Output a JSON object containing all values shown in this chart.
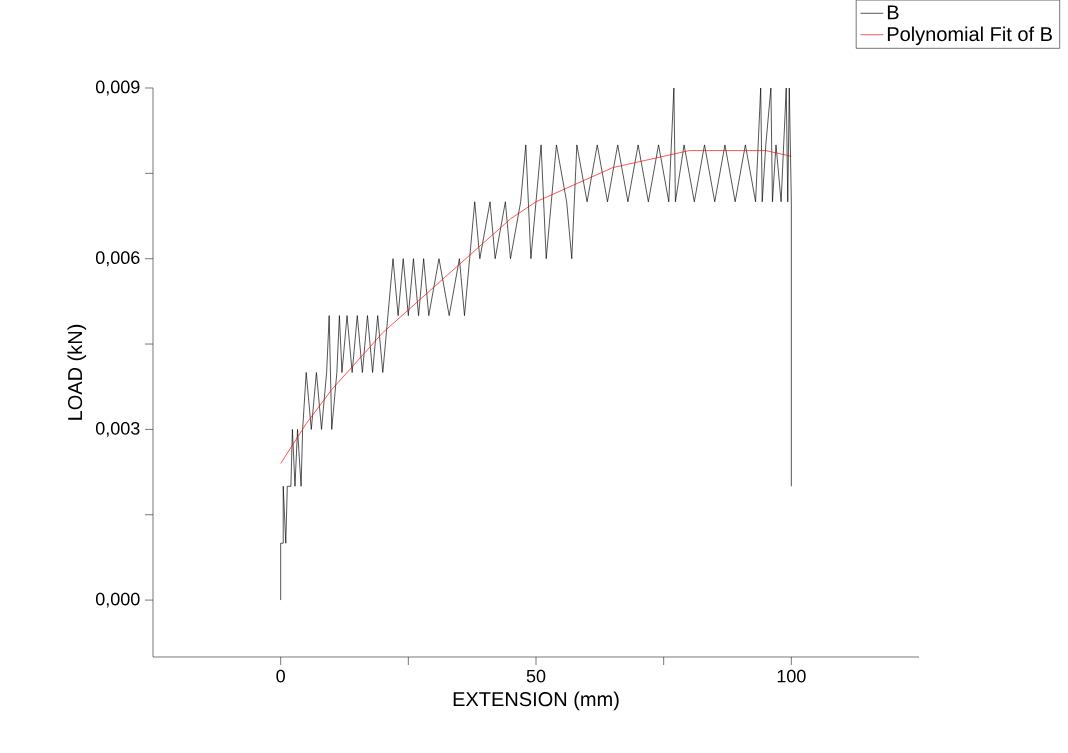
{
  "chart_data": {
    "type": "line",
    "xlabel": "EXTENSION (mm)",
    "ylabel": "LOAD (kN)",
    "xlim": [
      -25,
      125
    ],
    "ylim": [
      -0.001,
      0.009
    ],
    "xticks": [
      0,
      {
        "value": 25,
        "label": null
      },
      50,
      {
        "value": 75,
        "label": null
      },
      100
    ],
    "yticks": [
      {
        "value": 0,
        "label": "0,000"
      },
      {
        "value": 0.0015,
        "label": null
      },
      {
        "value": 0.003,
        "label": "0,003"
      },
      {
        "value": 0.0045,
        "label": null
      },
      {
        "value": 0.006,
        "label": "0,006"
      },
      {
        "value": 0.0075,
        "label": null
      },
      {
        "value": 0.009,
        "label": "0,009"
      }
    ],
    "grid": false,
    "legend": "top right",
    "marker": "none",
    "line_style": "solid",
    "series": [
      {
        "name": "B",
        "color": "#000000",
        "x": [
          0,
          0,
          0.5,
          0.5,
          1,
          1.3,
          2,
          2.3,
          2.8,
          3.3,
          4,
          4.3,
          5,
          6,
          7,
          8,
          9,
          9.5,
          10,
          11,
          11.5,
          12,
          13,
          14,
          15,
          16,
          17,
          18,
          19,
          20,
          21,
          22,
          23,
          24,
          25,
          26,
          27,
          28,
          29,
          31,
          33,
          35,
          36,
          37,
          38,
          39,
          41,
          42,
          44,
          45,
          47,
          48,
          49,
          50,
          51,
          52,
          53,
          54,
          56,
          57,
          58,
          60,
          62,
          64,
          66,
          68,
          70,
          72,
          74,
          76,
          77,
          77.3,
          79,
          81,
          83,
          85,
          87,
          89,
          91,
          93,
          94,
          94.3,
          95,
          96,
          96.3,
          97,
          98,
          99,
          99.3,
          99.6,
          100,
          100
        ],
        "values": [
          0,
          0.001,
          0.001,
          0.002,
          0.001,
          0.002,
          0.002,
          0.003,
          0.002,
          0.003,
          0.002,
          0.003,
          0.004,
          0.003,
          0.004,
          0.003,
          0.004,
          0.005,
          0.003,
          0.004,
          0.005,
          0.004,
          0.005,
          0.004,
          0.005,
          0.004,
          0.005,
          0.004,
          0.005,
          0.004,
          0.005,
          0.006,
          0.005,
          0.006,
          0.005,
          0.006,
          0.005,
          0.006,
          0.005,
          0.006,
          0.005,
          0.006,
          0.005,
          0.006,
          0.007,
          0.006,
          0.007,
          0.006,
          0.007,
          0.006,
          0.007,
          0.008,
          0.006,
          0.007,
          0.008,
          0.006,
          0.007,
          0.008,
          0.007,
          0.006,
          0.008,
          0.007,
          0.008,
          0.007,
          0.008,
          0.007,
          0.008,
          0.007,
          0.008,
          0.007,
          0.009,
          0.007,
          0.008,
          0.007,
          0.008,
          0.007,
          0.008,
          0.007,
          0.008,
          0.007,
          0.009,
          0.007,
          0.008,
          0.009,
          0.007,
          0.008,
          0.007,
          0.009,
          0.007,
          0.009,
          0.007,
          0.002
        ]
      },
      {
        "name": "Polynomial Fit of B",
        "color": "#ff0000",
        "x": [
          0,
          5,
          10,
          15,
          20,
          25,
          30,
          35,
          40,
          45,
          50,
          55,
          60,
          65,
          70,
          75,
          80,
          85,
          90,
          95,
          100
        ],
        "values": [
          0.0024,
          0.0031,
          0.0037,
          0.0042,
          0.0047,
          0.0051,
          0.0055,
          0.0059,
          0.0063,
          0.0067,
          0.007,
          0.0072,
          0.0074,
          0.0076,
          0.0077,
          0.0078,
          0.0079,
          0.0079,
          0.0079,
          0.0079,
          0.0078
        ]
      }
    ]
  }
}
